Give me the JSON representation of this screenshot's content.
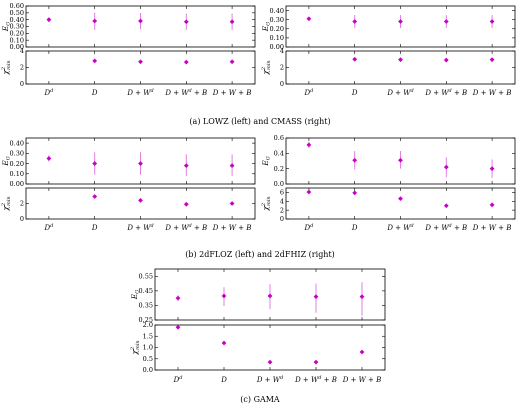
{
  "colors": {
    "marker": "#c800c8",
    "errbar": "#e080e0",
    "frame": "#000000"
  },
  "labels": {
    "eg": "E",
    "eg_sub": "G",
    "chi": "χ",
    "chi_sup": "2",
    "chi_sub": "min"
  },
  "captions": {
    "row1": "(a) LOWZ (left) and CMASS (right)",
    "row2": "(b) 2dFLOZ (left) and 2dFHIZ (right)",
    "row3": "(c) GAMA"
  },
  "categories": [
    {
      "base": "D",
      "sup": "d"
    },
    {
      "base": "D",
      "sup": ""
    },
    {
      "base": "D + W",
      "sup": "d"
    },
    {
      "base": "D + W",
      "sup": "d",
      "tail": " + B"
    },
    {
      "base": "D + W + B",
      "sup": ""
    }
  ],
  "chart_data": [
    {
      "type": "scatter",
      "title": "LOWZ",
      "eg": {
        "ylim": [
          0.0,
          0.6
        ],
        "ticks": [
          "0.00",
          "0.10",
          "0.20",
          "0.30",
          "0.40",
          "0.50",
          "0.60"
        ],
        "values": [
          0.4,
          0.38,
          0.38,
          0.37,
          0.37
        ],
        "err_lo": [
          0.03,
          0.13,
          0.12,
          0.12,
          0.12
        ],
        "err_hi": [
          0.03,
          0.12,
          0.12,
          0.12,
          0.12
        ]
      },
      "chi2": {
        "ylim": [
          0,
          4
        ],
        "ticks": [
          "0",
          "2",
          "4"
        ],
        "values": [
          null,
          2.8,
          2.7,
          2.65,
          2.7
        ]
      }
    },
    {
      "type": "scatter",
      "title": "CMASS",
      "eg": {
        "ylim": [
          0.0,
          0.45
        ],
        "ticks": [
          "0.00",
          "0.10",
          "0.20",
          "0.30",
          "0.40"
        ],
        "values": [
          0.31,
          0.28,
          0.28,
          0.28,
          0.28
        ],
        "err_lo": [
          0.01,
          0.07,
          0.07,
          0.07,
          0.07
        ],
        "err_hi": [
          0.01,
          0.07,
          0.07,
          0.07,
          0.07
        ]
      },
      "chi2": {
        "ylim": [
          0,
          4
        ],
        "ticks": [
          "0",
          "2",
          "4"
        ],
        "values": [
          null,
          3.0,
          2.95,
          2.9,
          2.95
        ]
      }
    },
    {
      "type": "scatter",
      "title": "2dFLOZ",
      "eg": {
        "ylim": [
          0.0,
          0.45
        ],
        "ticks": [
          "0.00",
          "0.10",
          "0.20",
          "0.30",
          "0.40"
        ],
        "values": [
          0.25,
          0.2,
          0.2,
          0.18,
          0.18
        ],
        "err_lo": [
          0.03,
          0.11,
          0.11,
          0.1,
          0.1
        ],
        "err_hi": [
          0.03,
          0.11,
          0.11,
          0.11,
          0.11
        ]
      },
      "chi2": {
        "ylim": [
          0,
          4
        ],
        "ticks": [
          "0",
          "2"
        ],
        "values": [
          null,
          2.9,
          2.4,
          1.9,
          2.0
        ]
      }
    },
    {
      "type": "scatter",
      "title": "2dFHIZ",
      "eg": {
        "ylim": [
          0.0,
          0.6
        ],
        "ticks": [
          "0.0",
          "0.2",
          "0.4",
          "0.6"
        ],
        "values": [
          0.51,
          0.31,
          0.31,
          0.22,
          0.2
        ],
        "err_lo": [
          0.04,
          0.12,
          0.11,
          0.13,
          0.12
        ],
        "err_hi": [
          0.04,
          0.12,
          0.12,
          0.13,
          0.12
        ]
      },
      "chi2": {
        "ylim": [
          0,
          7
        ],
        "ticks": [
          "0",
          "2",
          "4",
          "6"
        ],
        "values": [
          6.1,
          5.9,
          4.6,
          3.0,
          3.2
        ]
      }
    },
    {
      "type": "scatter",
      "title": "GAMA",
      "eg": {
        "ylim": [
          0.25,
          0.6
        ],
        "ticks": [
          "0.25",
          "0.35",
          "0.45",
          "0.55"
        ],
        "values": [
          0.4,
          0.415,
          0.415,
          0.41,
          0.41
        ],
        "err_lo": [
          0.02,
          0.07,
          0.09,
          0.11,
          0.13
        ],
        "err_hi": [
          0.02,
          0.06,
          0.08,
          0.09,
          0.1
        ]
      },
      "chi2": {
        "ylim": [
          0,
          2.0
        ],
        "ticks": [
          "0.0",
          "0.5",
          "1.0",
          "1.5",
          "2.0"
        ],
        "values": [
          1.9,
          1.2,
          0.35,
          0.35,
          0.8
        ]
      }
    }
  ]
}
